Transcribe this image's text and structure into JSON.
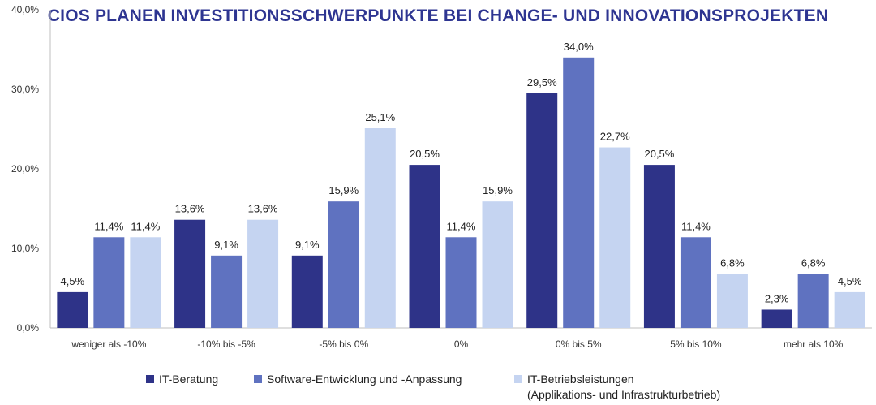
{
  "chart_data": {
    "type": "bar",
    "title": "CIOS PLANEN INVESTITIONSSCHWERPUNKTE BEI CHANGE- UND INNOVATIONSPROJEKTEN",
    "categories": [
      "weniger als -10%",
      "-10% bis -5%",
      "-5% bis 0%",
      "0%",
      "0% bis 5%",
      "5% bis 10%",
      "mehr als 10%"
    ],
    "series": [
      {
        "name": "IT-Beratung",
        "values": [
          4.5,
          13.6,
          9.1,
          20.5,
          29.5,
          20.5,
          2.3
        ],
        "color": "#2e3388",
        "labels": [
          "4,5%",
          "13,6%",
          "9,1%",
          "20,5%",
          "29,5%",
          "20,5%",
          "2,3%"
        ]
      },
      {
        "name": "Software-Entwicklung und -Anpassung",
        "values": [
          11.4,
          9.1,
          15.9,
          11.4,
          34.0,
          11.4,
          6.8
        ],
        "color": "#5f72c0",
        "labels": [
          "11,4%",
          "9,1%",
          "15,9%",
          "11,4%",
          "34,0%",
          "11,4%",
          "6,8%"
        ]
      },
      {
        "name": "IT-Betriebsleistungen",
        "name_line2": "(Applikations- und Infrastrukturbetrieb)",
        "values": [
          11.4,
          13.6,
          25.1,
          15.9,
          22.7,
          6.8,
          4.5
        ],
        "color": "#c5d4f1",
        "labels": [
          "11,4%",
          "13,6%",
          "25,1%",
          "15,9%",
          "22,7%",
          "6,8%",
          "4,5%"
        ]
      }
    ],
    "ylim": [
      0,
      40
    ],
    "yticks": [
      0,
      10,
      20,
      30,
      40
    ],
    "ytick_labels": [
      "0,0%",
      "10,0%",
      "20,0%",
      "30,0%",
      "40,0%"
    ],
    "grid": false,
    "legend_position": "bottom"
  }
}
